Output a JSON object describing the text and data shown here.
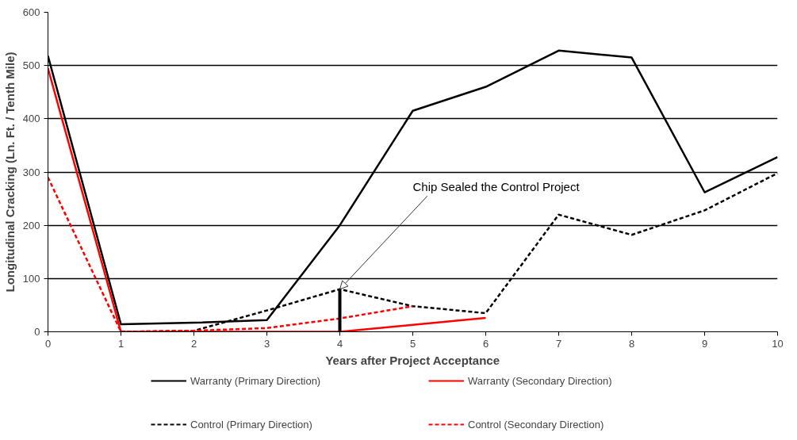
{
  "chart_data": {
    "type": "line",
    "xlabel": "Years after Project Acceptance",
    "ylabel": "Longitudinal Cracking (Ln. Ft. / Tenth Mile)",
    "x": [
      0,
      1,
      2,
      3,
      4,
      5,
      6,
      7,
      8,
      9,
      10
    ],
    "series": [
      {
        "name": "Warranty (Primary Direction)",
        "color": "#000000",
        "line_style": "solid",
        "values": [
          518,
          14,
          17,
          22,
          200,
          415,
          460,
          528,
          515,
          262,
          328
        ]
      },
      {
        "name": "Warranty (Secondary Direction)",
        "color": "#ff0000",
        "line_style": "solid",
        "values": [
          495,
          0,
          0,
          0,
          0,
          13,
          26,
          null,
          null,
          null,
          null
        ]
      },
      {
        "name": "Control (Primary Direction)",
        "color": "#000000",
        "line_style": "dashed",
        "values": [
          null,
          0,
          2,
          40,
          80,
          48,
          35,
          220,
          182,
          228,
          298
        ]
      },
      {
        "name": "Control (Secondary Direction)",
        "color": "#ff0000",
        "line_style": "dashed",
        "values": [
          290,
          0,
          2,
          7,
          25,
          48,
          null,
          null,
          null,
          null,
          null
        ]
      }
    ],
    "annotations": [
      {
        "text": "Chip Sealed the Control Project",
        "x": 4,
        "y": 80
      }
    ],
    "ref_lines": [
      {
        "axis": "x",
        "value": 4
      }
    ],
    "xlim": [
      0,
      10
    ],
    "xticks": [
      0,
      1,
      2,
      3,
      4,
      5,
      6,
      7,
      8,
      9,
      10
    ],
    "ylim": [
      0,
      600
    ],
    "yticks": [
      0,
      100,
      200,
      300,
      400,
      500,
      600
    ],
    "grid": "y",
    "legend": "bottom",
    "marker": "none"
  }
}
